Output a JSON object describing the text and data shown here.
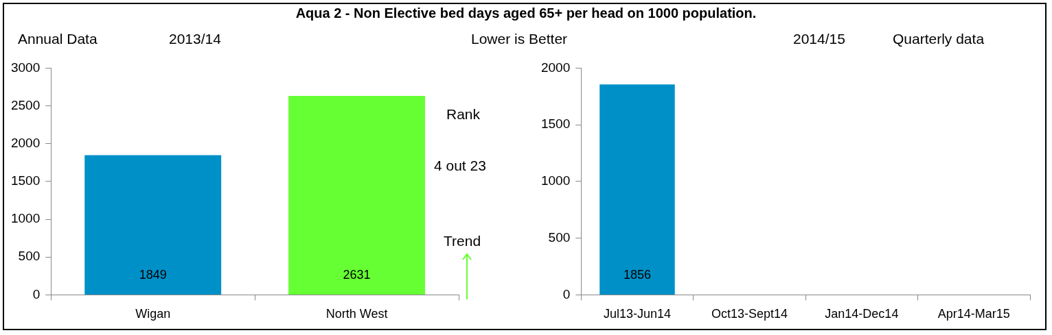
{
  "chart_data": [
    {
      "type": "bar",
      "title": "Aqua 2 - Non Elective bed days aged 65+ per head on 1000 population.",
      "categories": [
        "Wigan",
        "North West"
      ],
      "values": [
        1849,
        2631
      ],
      "colors": [
        "#0090c8",
        "#66ff33"
      ],
      "ylim": [
        0,
        3000
      ],
      "yticks": [
        0,
        500,
        1000,
        1500,
        2000,
        2500,
        3000
      ],
      "grid": false,
      "legend": false,
      "data_labels": true,
      "annotations": [
        "Annual Data",
        "2013/14",
        "Lower is Better",
        "Rank",
        "4 out 23",
        "Trend"
      ]
    },
    {
      "type": "bar",
      "categories": [
        "Jul13-Jun14",
        "Oct13-Sept14",
        "Jan14-Dec14",
        "Apr14-Mar15"
      ],
      "values": [
        1856,
        null,
        null,
        null
      ],
      "colors": [
        "#0090c8",
        "#0090c8",
        "#0090c8",
        "#0090c8"
      ],
      "ylim": [
        0,
        2000
      ],
      "yticks": [
        0,
        500,
        1000,
        1500,
        2000
      ],
      "grid": false,
      "legend": false,
      "data_labels": true,
      "annotations": [
        "2014/15",
        "Quarterly data"
      ]
    }
  ]
}
